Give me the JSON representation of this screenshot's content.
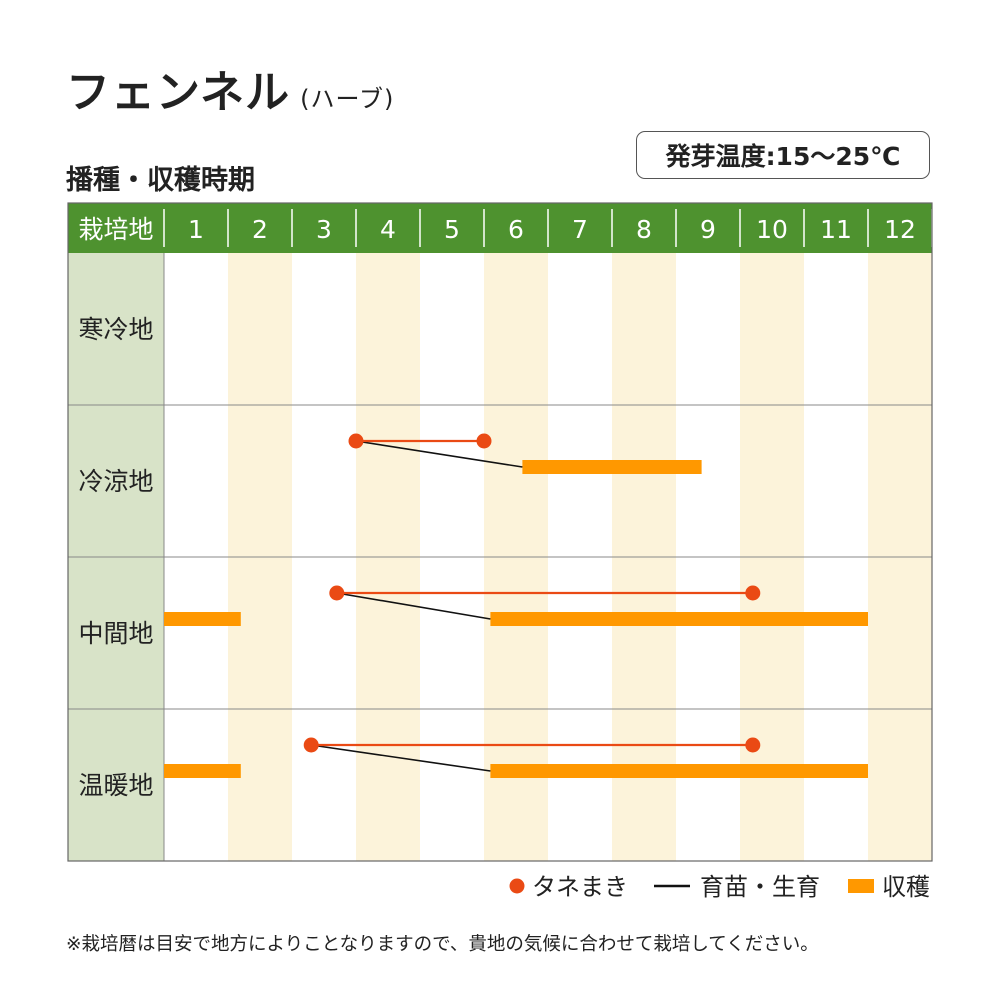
{
  "title": "フェンネル",
  "title_sub": "(ハーブ)",
  "subtitle": "播種・収穫時期",
  "germination_temp": "発芽温度:15〜25℃",
  "note": "※栽培暦は目安で地方によりことなりますので、貴地の気候に合わせて栽培してください。",
  "colors": {
    "header": "#4e922f",
    "region_cell": "#d8e3c8",
    "alt_month": "#fcf3da",
    "sowing": "#ea4a14",
    "seedling": "#111111",
    "harvest": "#ff9800"
  },
  "chart_data": {
    "type": "table",
    "corner_label": "栽培地",
    "months": [
      "1",
      "2",
      "3",
      "4",
      "5",
      "6",
      "7",
      "8",
      "9",
      "10",
      "11",
      "12"
    ],
    "legend": [
      {
        "key": "sowing",
        "label": "タネまき"
      },
      {
        "key": "seedling",
        "label": "育苗・生育"
      },
      {
        "key": "harvest",
        "label": "収穫"
      }
    ],
    "regions": [
      {
        "name": "寒冷地",
        "sowing": [],
        "seedling": [],
        "harvest": []
      },
      {
        "name": "冷涼地",
        "sowing": [
          [
            4.0,
            6.0
          ]
        ],
        "seedling": [
          [
            4.0,
            6.6
          ]
        ],
        "harvest": [
          [
            6.6,
            9.4
          ]
        ]
      },
      {
        "name": "中間地",
        "sowing": [
          [
            3.7,
            10.2
          ]
        ],
        "seedling": [
          [
            3.7,
            6.1
          ]
        ],
        "harvest": [
          [
            1.0,
            2.2
          ],
          [
            6.1,
            12.0
          ]
        ]
      },
      {
        "name": "温暖地",
        "sowing": [
          [
            3.3,
            10.2
          ]
        ],
        "seedling": [
          [
            3.3,
            6.1
          ]
        ],
        "harvest": [
          [
            1.0,
            2.2
          ],
          [
            6.1,
            12.0
          ]
        ]
      }
    ]
  }
}
